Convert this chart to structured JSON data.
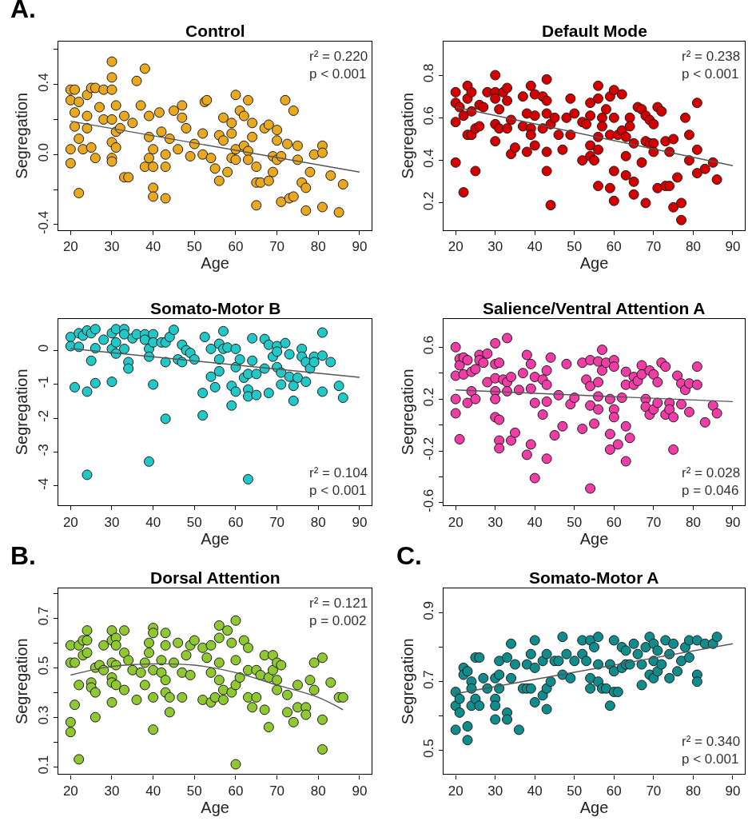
{
  "chart_data": [
    {
      "type": "scatter",
      "title": "Control",
      "xlabel": "Age",
      "ylabel": "Segregation",
      "xlim": [
        17,
        93
      ],
      "ylim": [
        -0.43,
        0.645
      ],
      "xticks": [
        20,
        30,
        40,
        50,
        60,
        70,
        80,
        90
      ],
      "yticks": [
        -0.4,
        {
          "value": -0.2,
          "label": null
        },
        {
          "value": 0.0,
          "label": "0.0"
        },
        {
          "value": 0.2,
          "label": null
        },
        0.4,
        {
          "value": 0.6,
          "label": null
        }
      ],
      "grid": false,
      "marker": "circle",
      "annotations": [
        "A.",
        "r² = 0.220\np < 0.001"
      ],
      "series": [
        {
          "color": "#e8a820",
          "x": [
            20,
            21,
            20,
            22,
            21,
            21,
            20,
            20,
            22,
            22,
            23,
            24,
            25,
            26,
            24,
            24,
            25,
            26,
            27,
            28,
            28,
            30,
            30,
            30,
            30,
            30,
            30,
            30,
            31,
            31,
            31,
            32,
            33,
            33,
            34,
            35,
            36,
            37,
            38,
            38,
            39,
            39,
            39,
            40,
            40,
            40,
            40,
            41.5,
            42,
            43,
            43,
            43,
            44,
            45,
            46,
            47,
            47,
            48,
            49,
            50,
            52,
            52.5,
            53,
            52,
            54,
            55,
            56,
            56,
            57,
            57,
            58,
            59,
            59,
            59,
            60,
            60,
            60,
            61,
            62,
            62,
            63,
            63,
            63,
            64,
            64,
            65,
            65,
            65,
            66,
            67,
            68,
            68,
            69,
            69,
            70,
            70,
            70,
            71,
            71,
            72,
            72.5,
            73,
            74,
            74,
            75,
            75,
            76,
            77,
            77,
            78,
            79,
            81,
            81,
            81,
            83,
            85,
            86
          ],
          "values": [
            0.37,
            0.37,
            0.31,
            0.3,
            0.24,
            0.16,
            0.03,
            -0.05,
            0.09,
            -0.22,
            0.03,
            0.34,
            0.38,
            0.38,
            0.22,
            0.15,
            0.04,
            -0.02,
            0.27,
            0.37,
            0.2,
            0.53,
            0.44,
            0.37,
            0.2,
            0.07,
            -0.02,
            -0.04,
            0.28,
            0.13,
            0.04,
            0.15,
            0.22,
            -0.13,
            -0.13,
            0.18,
            0.42,
            0.28,
            0.49,
            -0.07,
            0.22,
            0.1,
            -0.02,
            0.03,
            -0.07,
            -0.19,
            -0.24,
            0.24,
            0.13,
            0.0,
            -0.07,
            -0.25,
            0.09,
            0.25,
            0.03,
            0.28,
            0.21,
            0.15,
            -0.01,
            0.06,
            0.12,
            0.3,
            0.31,
            0.0,
            -0.02,
            -0.08,
            0.11,
            -0.15,
            0.21,
            0.08,
            -0.1,
            0.18,
            0.12,
            -0.02,
            0.34,
            0.03,
            -0.03,
            0.25,
            0.22,
            0.05,
            0.31,
            0.02,
            -0.03,
            0.18,
            0.1,
            -0.07,
            -0.16,
            -0.29,
            -0.16,
            0.15,
            0.17,
            -0.15,
            -0.1,
            -0.01,
            0.14,
            0.08,
            -0.03,
            -0.01,
            -0.27,
            0.31,
            0.06,
            -0.25,
            0.25,
            -0.24,
            0.05,
            -0.03,
            -0.16,
            -0.19,
            -0.32,
            -0.1,
            0.0,
            0.05,
            0.01,
            -0.3,
            -0.12,
            -0.33,
            -0.17
          ]
        },
        {
          "type": "line",
          "color": "#555555",
          "marker": "none",
          "x": [
            20,
            90
          ],
          "values": [
            0.19,
            -0.1
          ]
        }
      ]
    },
    {
      "type": "scatter",
      "title": "Default Mode",
      "xlabel": "Age",
      "ylabel": "Segregation",
      "xlim": [
        17,
        93
      ],
      "ylim": [
        0.074,
        0.958
      ],
      "xticks": [
        20,
        30,
        40,
        50,
        60,
        70,
        80,
        90
      ],
      "yticks": [
        0.2,
        0.4,
        0.6,
        0.8
      ],
      "grid": false,
      "marker": "circle",
      "annotations": [
        "r² = 0.238\np < 0.001"
      ],
      "series": [
        {
          "color": "#d40000",
          "x": [
            20,
            20,
            20,
            20,
            21,
            22,
            22,
            23,
            23,
            23,
            24,
            24,
            24,
            25,
            25,
            26,
            26,
            27,
            28,
            30,
            30,
            30,
            30,
            30,
            31,
            31,
            32,
            33,
            33,
            33,
            34,
            34,
            35,
            37,
            37,
            38,
            38,
            39,
            39,
            39,
            40,
            40,
            40,
            42,
            42,
            43,
            43,
            43,
            43,
            43,
            44,
            44,
            45,
            46,
            47,
            48,
            49,
            49,
            50,
            52,
            52,
            53,
            54,
            54,
            54,
            54,
            55,
            56,
            56,
            56,
            56,
            56,
            57,
            57,
            58,
            59,
            59,
            59,
            60,
            60,
            60,
            60,
            61,
            62,
            62,
            63,
            63,
            63,
            64,
            64,
            65,
            65,
            65,
            66,
            67,
            67,
            68,
            68,
            68,
            69,
            69,
            70,
            70,
            70,
            71,
            71,
            72,
            73,
            73,
            74,
            74,
            75,
            75,
            76,
            77,
            77,
            78,
            79,
            79,
            81,
            81,
            81,
            83,
            85,
            86
          ],
          "values": [
            0.72,
            0.67,
            0.58,
            0.39,
            0.65,
            0.61,
            0.25,
            0.75,
            0.69,
            0.52,
            0.72,
            0.63,
            0.52,
            0.35,
            0.55,
            0.66,
            0.56,
            0.65,
            0.72,
            0.8,
            0.72,
            0.69,
            0.57,
            0.49,
            0.64,
            0.55,
            0.72,
            0.74,
            0.68,
            0.55,
            0.59,
            0.43,
            0.46,
            0.56,
            0.7,
            0.62,
            0.44,
            0.75,
            0.55,
            0.52,
            0.71,
            0.61,
            0.47,
            0.7,
            0.55,
            0.78,
            0.68,
            0.62,
            0.44,
            0.35,
            0.19,
            0.57,
            0.6,
            0.52,
            0.45,
            0.6,
            0.69,
            0.52,
            0.62,
            0.58,
            0.4,
            0.57,
            0.67,
            0.61,
            0.47,
            0.42,
            0.4,
            0.75,
            0.69,
            0.51,
            0.45,
            0.28,
            0.6,
            0.56,
            0.64,
            0.7,
            0.52,
            0.27,
            0.73,
            0.6,
            0.35,
            0.21,
            0.52,
            0.71,
            0.54,
            0.51,
            0.42,
            0.33,
            0.6,
            0.56,
            0.48,
            0.3,
            0.24,
            0.65,
            0.64,
            0.39,
            0.61,
            0.49,
            0.2,
            0.59,
            0.48,
            0.57,
            0.48,
            0.44,
            0.65,
            0.27,
            0.63,
            0.49,
            0.28,
            0.28,
            0.44,
            0.5,
            0.18,
            0.32,
            0.2,
            0.12,
            0.6,
            0.52,
            0.4,
            0.67,
            0.45,
            0.34,
            0.36,
            0.39,
            0.31
          ]
        },
        {
          "type": "line",
          "color": "#555555",
          "marker": "none",
          "x": [
            20,
            90
          ],
          "values": [
            0.65,
            0.375
          ]
        }
      ]
    },
    {
      "type": "scatter",
      "title": "Somato-Motor B",
      "xlabel": "Age",
      "ylabel": "Segregation",
      "xlim": [
        17,
        93
      ],
      "ylim": [
        -4.57,
        0.93
      ],
      "xticks": [
        20,
        30,
        40,
        50,
        60,
        70,
        80,
        90
      ],
      "yticks": [
        -4,
        -3,
        -2,
        -1,
        0
      ],
      "grid": false,
      "marker": "circle",
      "annotations": [
        "r² = 0.104\np < 0.001"
      ],
      "series": [
        {
          "color": "#22c8c8",
          "x": [
            20,
            20,
            21,
            22,
            22,
            23,
            24,
            24,
            24,
            25,
            25,
            26,
            26,
            26,
            28,
            30,
            30,
            30,
            31,
            31,
            31,
            33,
            33,
            33,
            34,
            34,
            35,
            36,
            38,
            38,
            39,
            39,
            39,
            40,
            40,
            40,
            42,
            43,
            43,
            43,
            44,
            45,
            46,
            47,
            47,
            48,
            49,
            50,
            52,
            52,
            52.5,
            54,
            54,
            55,
            56,
            56,
            56,
            57,
            57,
            58,
            59,
            59,
            60,
            60,
            60,
            61,
            62,
            63,
            63,
            63,
            63,
            64,
            64,
            65,
            65,
            67,
            67,
            68,
            68,
            69,
            70,
            70,
            70,
            71,
            71,
            72,
            73,
            73,
            74,
            74,
            75,
            76,
            76,
            77,
            77,
            78,
            79,
            79,
            81,
            81,
            81,
            83,
            85,
            86
          ],
          "values": [
            0.39,
            0.12,
            -1.09,
            0.5,
            0.1,
            0.43,
            -1.22,
            -3.67,
            0.58,
            -0.31,
            0.5,
            0.62,
            0.06,
            -0.97,
            0.31,
            -0.93,
            0.5,
            0.04,
            0.62,
            0.23,
            -0.1,
            0.62,
            0.47,
            0.04,
            -0.35,
            -0.54,
            0.35,
            0.47,
            0.47,
            0.31,
            0.04,
            -0.19,
            -3.28,
            0.47,
            0.23,
            -1.01,
            0.23,
            -0.35,
            -2.02,
            0.23,
            0.39,
            0.6,
            -0.27,
            0.16,
            -0.35,
            0.0,
            -0.08,
            -0.27,
            -1.26,
            -1.92,
            0.39,
            0.04,
            -0.78,
            -1.09,
            0.19,
            -0.27,
            -0.62,
            0.56,
            0.04,
            0.08,
            -1.05,
            -1.63,
            0.04,
            -0.5,
            -1.22,
            -0.27,
            -0.81,
            -0.7,
            -1.16,
            -1.36,
            -3.8,
            0.35,
            -0.31,
            -0.7,
            -1.32,
            0.33,
            -0.54,
            0.16,
            -1.26,
            -0.19,
            0.12,
            -0.04,
            -0.5,
            -1.01,
            -0.66,
            0.21,
            -0.12,
            -0.78,
            -1.05,
            -1.49,
            -0.81,
            0.04,
            -0.19,
            -0.35,
            -0.93,
            -0.54,
            -0.19,
            -0.35,
            0.52,
            -0.16,
            -1.22,
            -0.35,
            -1.05,
            -1.4
          ]
        },
        {
          "type": "line",
          "color": "#555555",
          "marker": "none",
          "x": [
            20,
            90
          ],
          "values": [
            0.05,
            -0.8
          ]
        }
      ]
    },
    {
      "type": "scatter",
      "title": "Salience/Ventral Attention A",
      "xlabel": "Age",
      "ylabel": "Segregation",
      "xlim": [
        17,
        93
      ],
      "ylim": [
        -0.62,
        0.82
      ],
      "xticks": [
        20,
        30,
        40,
        50,
        60,
        70,
        80,
        90
      ],
      "yticks": [
        -0.6,
        {
          "value": -0.4,
          "label": null
        },
        -0.2,
        {
          "value": 0.0,
          "label": null
        },
        0.2,
        {
          "value": 0.4,
          "label": null
        },
        0.6
      ],
      "grid": false,
      "marker": "circle",
      "annotations": [
        "r² = 0.028\np = 0.046"
      ],
      "series": [
        {
          "color": "#f03ca5",
          "x": [
            20,
            20,
            20,
            20,
            21,
            21,
            21,
            22,
            22,
            23,
            23,
            24,
            24,
            25,
            25,
            26,
            26,
            27,
            28,
            28,
            30,
            30,
            30,
            30,
            30,
            30,
            31,
            31,
            31,
            31,
            32,
            33,
            33,
            33,
            34,
            34,
            35,
            36,
            37,
            38,
            38,
            39,
            39,
            39,
            40,
            40,
            40,
            42,
            42,
            43,
            43,
            43,
            43,
            44,
            45,
            46,
            47,
            48,
            49,
            50,
            52,
            52,
            53,
            54,
            54,
            54,
            54,
            55,
            56,
            56,
            56,
            57,
            57,
            56,
            58,
            59,
            59,
            59,
            60,
            60,
            60,
            60,
            61,
            62,
            63,
            63,
            63,
            63,
            64,
            65,
            65,
            66,
            67,
            67,
            68,
            68,
            69,
            69,
            70,
            70,
            71,
            71,
            72,
            73,
            73,
            74,
            74,
            75,
            75,
            76,
            77,
            77,
            78,
            79,
            79,
            81,
            81,
            83,
            85,
            86
          ],
          "values": [
            0.6,
            0.38,
            0.2,
            0.09,
            -0.11,
            0.51,
            0.46,
            0.39,
            0.52,
            0.5,
            0.17,
            0.26,
            0.41,
            0.43,
            0.2,
            0.54,
            0.5,
            0.48,
            0.55,
            0.33,
            0.63,
            0.47,
            0.36,
            0.26,
            0.2,
            0.06,
            0.48,
            0.04,
            -0.12,
            -0.18,
            0.35,
            0.67,
            0.33,
            0.26,
            0.37,
            -0.12,
            -0.06,
            0.27,
            0.4,
            0.54,
            -0.23,
            0.47,
            -0.15,
            0.28,
            0.37,
            0.17,
            -0.41,
            0.35,
            0.08,
            0.42,
            0.31,
            0.18,
            -0.26,
            0.52,
            -0.08,
            0.23,
            -0.01,
            0.47,
            0.16,
            0.21,
            0.48,
            -0.03,
            0.35,
            0.5,
            0.3,
            0.15,
            -0.49,
            0.01,
            0.49,
            0.33,
            0.12,
            0.58,
            0.42,
            0.22,
            0.48,
            0.2,
            -0.07,
            -0.19,
            0.5,
            0.45,
            0.12,
            0.06,
            -0.15,
            0.21,
            0.41,
            0.31,
            -0.01,
            -0.28,
            -0.1,
            0.37,
            0.31,
            0.34,
            0.46,
            0.39,
            0.2,
            0.14,
            0.42,
            0.08,
            0.39,
            0.12,
            0.33,
            0.17,
            0.48,
            0.45,
            0.08,
            0.17,
            0.12,
            0.06,
            -0.19,
            0.38,
            0.32,
            0.16,
            0.27,
            0.32,
            0.1,
            0.45,
            0.31,
            0.02,
            0.15,
            0.09
          ]
        },
        {
          "type": "line",
          "color": "#555555",
          "marker": "none",
          "x": [
            20,
            90
          ],
          "values": [
            0.27,
            0.18
          ]
        }
      ]
    },
    {
      "type": "scatter",
      "title": "Dorsal Attention",
      "xlabel": "Age",
      "ylabel": "Segregation",
      "xlim": [
        17,
        93
      ],
      "ylim": [
        0.07,
        0.82
      ],
      "xticks": [
        20,
        30,
        40,
        50,
        60,
        70,
        80,
        90
      ],
      "yticks": [
        0.1,
        {
          "value": 0.2,
          "label": null
        },
        0.3,
        {
          "value": 0.4,
          "label": null
        },
        0.5,
        {
          "value": 0.6,
          "label": null
        },
        0.7,
        {
          "value": 0.8,
          "label": null
        }
      ],
      "grid": false,
      "marker": "circle",
      "annotations": [
        "B.",
        "r² = 0.121\np = 0.002"
      ],
      "series": [
        {
          "color": "#90c832",
          "x": [
            20,
            20,
            20,
            20,
            21,
            21,
            22,
            22,
            22,
            23,
            23,
            24,
            24,
            24,
            25,
            25,
            26,
            26,
            26,
            27,
            28,
            28,
            30,
            30,
            30,
            30,
            30,
            30,
            31,
            31,
            31,
            31,
            33,
            33,
            33,
            34,
            35,
            36,
            37,
            38,
            38,
            39,
            39,
            40,
            40,
            40,
            40,
            40,
            42,
            42,
            43,
            43,
            43,
            43,
            44,
            44,
            45,
            46,
            47,
            47,
            48,
            49,
            49,
            50,
            52,
            52,
            53,
            54,
            54,
            54,
            55,
            56,
            56,
            56,
            56,
            57,
            57,
            58,
            59,
            59,
            60,
            60,
            60,
            60,
            61,
            62,
            63,
            63,
            63,
            64,
            65,
            65,
            66,
            67,
            67,
            68,
            68,
            69,
            69,
            70,
            70,
            70,
            71,
            72.5,
            72.5,
            74,
            75,
            75,
            77,
            77,
            78,
            79,
            79,
            81,
            81,
            81,
            83,
            85,
            86
          ],
          "values": [
            0.59,
            0.52,
            0.28,
            0.24,
            0.52,
            0.35,
            0.13,
            0.43,
            0.59,
            0.61,
            0.55,
            0.65,
            0.61,
            0.56,
            0.44,
            0.42,
            0.5,
            0.4,
            0.3,
            0.51,
            0.59,
            0.49,
            0.65,
            0.61,
            0.52,
            0.46,
            0.44,
            0.36,
            0.62,
            0.59,
            0.43,
            0.51,
            0.65,
            0.56,
            0.41,
            0.53,
            0.49,
            0.37,
            0.48,
            0.52,
            0.43,
            0.6,
            0.56,
            0.66,
            0.64,
            0.49,
            0.38,
            0.25,
            0.53,
            0.48,
            0.64,
            0.59,
            0.45,
            0.4,
            0.38,
            0.32,
            0.52,
            0.6,
            0.48,
            0.38,
            0.55,
            0.59,
            0.47,
            0.61,
            0.58,
            0.37,
            0.54,
            0.59,
            0.48,
            0.36,
            0.38,
            0.67,
            0.62,
            0.52,
            0.45,
            0.41,
            0.37,
            0.65,
            0.6,
            0.4,
            0.69,
            0.53,
            0.43,
            0.11,
            0.46,
            0.61,
            0.58,
            0.38,
            0.49,
            0.34,
            0.49,
            0.38,
            0.47,
            0.55,
            0.33,
            0.26,
            0.46,
            0.55,
            0.49,
            0.52,
            0.45,
            0.41,
            0.51,
            0.39,
            0.32,
            0.28,
            0.43,
            0.34,
            0.34,
            0.31,
            0.45,
            0.41,
            0.52,
            0.54,
            0.29,
            0.17,
            0.44,
            0.38,
            0.38
          ]
        },
        {
          "type": "line",
          "color": "#555555",
          "marker": "none",
          "x": [
            20,
            30,
            40,
            50,
            60,
            70,
            80,
            86
          ],
          "values": [
            0.47,
            0.505,
            0.515,
            0.51,
            0.48,
            0.43,
            0.38,
            0.33
          ]
        }
      ]
    },
    {
      "type": "scatter",
      "title": "Somato-Motor A",
      "xlabel": "Age",
      "ylabel": "Segregation",
      "xlim": [
        17,
        93
      ],
      "ylim": [
        0.431,
        0.971
      ],
      "xticks": [
        20,
        30,
        40,
        50,
        60,
        70,
        80,
        90
      ],
      "yticks": [
        0.5,
        {
          "value": 0.6,
          "label": null
        },
        0.7,
        {
          "value": 0.8,
          "label": null
        },
        0.9
      ],
      "grid": false,
      "marker": "circle",
      "annotations": [
        "C.",
        "r² = 0.340\np < 0.001"
      ],
      "series": [
        {
          "color": "#108c8c",
          "x": [
            20,
            20,
            20,
            21,
            21,
            22,
            22,
            23,
            23,
            23,
            24,
            24,
            24,
            25,
            25,
            26,
            26,
            27,
            28,
            30,
            30,
            30,
            30,
            31,
            31,
            31,
            33,
            33,
            33,
            34,
            34,
            35,
            36,
            37,
            38,
            38,
            39,
            39,
            40,
            40,
            40,
            42,
            42,
            43,
            43,
            43,
            44,
            45,
            46,
            47,
            47,
            48,
            49,
            50,
            52,
            52,
            53,
            54,
            54,
            54,
            55,
            56,
            56,
            56,
            57,
            58,
            59,
            59,
            60,
            60,
            60,
            61,
            62,
            62,
            63,
            63,
            64,
            65,
            66,
            67,
            67,
            68,
            69,
            69,
            70,
            70,
            70,
            71,
            71,
            72,
            73,
            74,
            74,
            75,
            76,
            77,
            78,
            79,
            79,
            81,
            81,
            81,
            83,
            85,
            86
          ],
          "values": [
            0.67,
            0.63,
            0.56,
            0.65,
            0.61,
            0.74,
            0.72,
            0.73,
            0.57,
            0.53,
            0.7,
            0.63,
            0.68,
            0.77,
            0.65,
            0.77,
            0.63,
            0.71,
            0.68,
            0.71,
            0.65,
            0.63,
            0.59,
            0.76,
            0.72,
            0.68,
            0.77,
            0.61,
            0.59,
            0.81,
            0.71,
            0.75,
            0.56,
            0.68,
            0.75,
            0.68,
            0.78,
            0.68,
            0.82,
            0.74,
            0.64,
            0.76,
            0.66,
            0.78,
            0.68,
            0.62,
            0.7,
            0.76,
            0.76,
            0.83,
            0.72,
            0.78,
            0.71,
            0.76,
            0.82,
            0.78,
            0.76,
            0.82,
            0.68,
            0.71,
            0.8,
            0.83,
            0.75,
            0.7,
            0.68,
            0.68,
            0.75,
            0.63,
            0.82,
            0.73,
            0.67,
            0.67,
            0.8,
            0.74,
            0.79,
            0.75,
            0.75,
            0.81,
            0.78,
            0.75,
            0.69,
            0.8,
            0.83,
            0.72,
            0.81,
            0.76,
            0.71,
            0.79,
            0.73,
            0.75,
            0.82,
            0.71,
            0.78,
            0.81,
            0.73,
            0.76,
            0.8,
            0.82,
            0.77,
            0.82,
            0.72,
            0.7,
            0.81,
            0.81,
            0.83
          ]
        },
        {
          "type": "line",
          "color": "#555555",
          "marker": "none",
          "x": [
            20,
            90
          ],
          "values": [
            0.665,
            0.81
          ]
        }
      ]
    }
  ]
}
